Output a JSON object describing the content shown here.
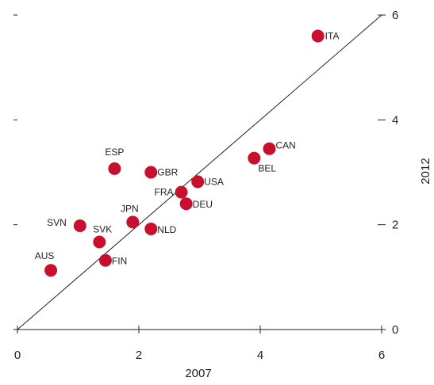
{
  "chart_data": {
    "type": "scatter",
    "xlabel": "2007",
    "ylabel": "2012",
    "xlim": [
      0,
      6
    ],
    "ylim": [
      0,
      6
    ],
    "x_ticks": [
      "0",
      "2",
      "4",
      "6"
    ],
    "y_ticks": [
      "0",
      "2",
      "4",
      "6"
    ],
    "grid": false,
    "reference_line": "45-degree diagonal",
    "marker_color": "#c8102e",
    "points": [
      {
        "label": "ITA",
        "x": 4.95,
        "y": 5.6
      },
      {
        "label": "CAN",
        "x": 4.15,
        "y": 3.45
      },
      {
        "label": "BEL",
        "x": 3.9,
        "y": 3.27
      },
      {
        "label": "ESP",
        "x": 1.6,
        "y": 3.07
      },
      {
        "label": "GBR",
        "x": 2.2,
        "y": 3.0
      },
      {
        "label": "USA",
        "x": 2.97,
        "y": 2.82
      },
      {
        "label": "FRA",
        "x": 2.7,
        "y": 2.62
      },
      {
        "label": "DEU",
        "x": 2.78,
        "y": 2.4
      },
      {
        "label": "JPN",
        "x": 1.9,
        "y": 2.05
      },
      {
        "label": "SVN",
        "x": 1.03,
        "y": 1.98
      },
      {
        "label": "NLD",
        "x": 2.2,
        "y": 1.92
      },
      {
        "label": "SVK",
        "x": 1.35,
        "y": 1.67
      },
      {
        "label": "FIN",
        "x": 1.45,
        "y": 1.32
      },
      {
        "label": "AUS",
        "x": 0.55,
        "y": 1.13
      }
    ]
  }
}
